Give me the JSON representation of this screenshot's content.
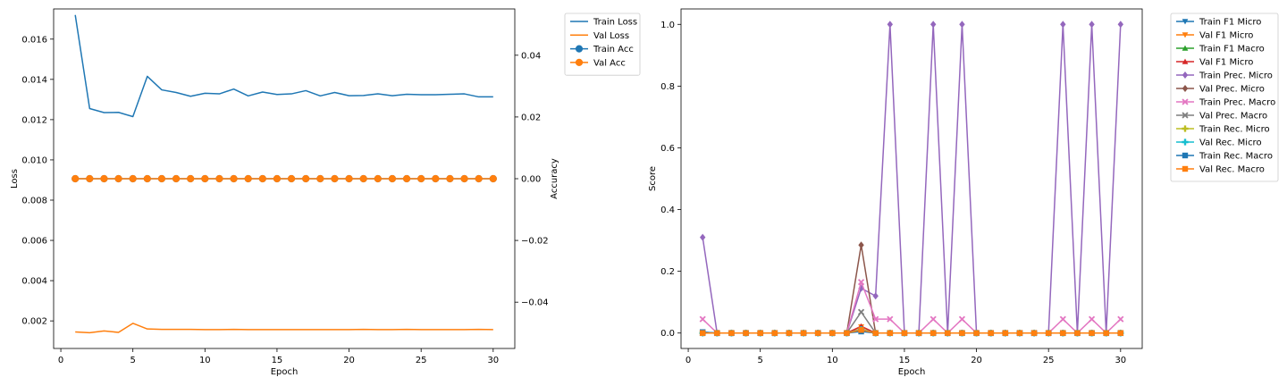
{
  "chart_data": [
    {
      "type": "line",
      "xlabel": "Epoch",
      "ylabel": "Loss",
      "y2label": "Accuracy",
      "xlim": [
        -0.5,
        31.5
      ],
      "ylim": [
        0.00063,
        0.0175
      ],
      "y2lim": [
        -0.055,
        0.055
      ],
      "xticks": [
        0,
        5,
        10,
        15,
        20,
        25,
        30
      ],
      "yticks": [
        0.002,
        0.004,
        0.006,
        0.008,
        0.01,
        0.012,
        0.014,
        0.016
      ],
      "ytick_labels": [
        "0.002",
        "0.004",
        "0.006",
        "0.008",
        "0.010",
        "0.012",
        "0.014",
        "0.016"
      ],
      "y2ticks": [
        -0.04,
        -0.02,
        0.0,
        0.02,
        0.04
      ],
      "y2tick_labels": [
        "−0.04",
        "−0.02",
        "0.00",
        "0.02",
        "0.04"
      ],
      "legend_position": "outside-top-right",
      "x": [
        1,
        2,
        3,
        4,
        5,
        6,
        7,
        8,
        9,
        10,
        11,
        12,
        13,
        14,
        15,
        16,
        17,
        18,
        19,
        20,
        21,
        22,
        23,
        24,
        25,
        26,
        27,
        28,
        29,
        30
      ],
      "series": [
        {
          "name": "Train Loss",
          "axis": "left",
          "color": "#1f77b4",
          "marker": "none",
          "values": [
            0.0172,
            0.01255,
            0.01235,
            0.01236,
            0.01215,
            0.01415,
            0.01348,
            0.01335,
            0.01316,
            0.01331,
            0.01328,
            0.01352,
            0.01318,
            0.01337,
            0.01325,
            0.01328,
            0.01344,
            0.01318,
            0.01335,
            0.01319,
            0.0132,
            0.01328,
            0.01319,
            0.01326,
            0.01324,
            0.01324,
            0.01326,
            0.01328,
            0.01313,
            0.01313
          ]
        },
        {
          "name": "Val Loss",
          "axis": "left",
          "color": "#ff7f0e",
          "marker": "none",
          "values": [
            0.00145,
            0.00141,
            0.0015,
            0.00143,
            0.00188,
            0.0016,
            0.00158,
            0.00158,
            0.00158,
            0.00157,
            0.00157,
            0.00158,
            0.00157,
            0.00157,
            0.00157,
            0.00157,
            0.00157,
            0.00157,
            0.00157,
            0.00157,
            0.00158,
            0.00157,
            0.00157,
            0.00158,
            0.00157,
            0.00157,
            0.00157,
            0.00157,
            0.00158,
            0.00157
          ]
        },
        {
          "name": "Train Acc",
          "axis": "right",
          "color": "#1f77b4",
          "marker": "o",
          "values": [
            0,
            0,
            0,
            0,
            0,
            0,
            0,
            0,
            0,
            0,
            0,
            0,
            0,
            0,
            0,
            0,
            0,
            0,
            0,
            0,
            0,
            0,
            0,
            0,
            0,
            0,
            0,
            0,
            0,
            0
          ]
        },
        {
          "name": "Val Acc",
          "axis": "right",
          "color": "#ff7f0e",
          "marker": "o",
          "values": [
            0,
            0,
            0,
            0,
            0,
            0,
            0,
            0,
            0,
            0,
            0,
            0,
            0,
            0,
            0,
            0,
            0,
            0,
            0,
            0,
            0,
            0,
            0,
            0,
            0,
            0,
            0,
            0,
            0,
            0
          ]
        }
      ]
    },
    {
      "type": "line",
      "xlabel": "Epoch",
      "ylabel": "Score",
      "xlim": [
        -0.5,
        31.5
      ],
      "ylim": [
        -0.05,
        1.05
      ],
      "xticks": [
        0,
        5,
        10,
        15,
        20,
        25,
        30
      ],
      "yticks": [
        0.0,
        0.2,
        0.4,
        0.6,
        0.8,
        1.0
      ],
      "ytick_labels": [
        "0.0",
        "0.2",
        "0.4",
        "0.6",
        "0.8",
        "1.0"
      ],
      "legend_position": "outside-top-right",
      "x": [
        1,
        2,
        3,
        4,
        5,
        6,
        7,
        8,
        9,
        10,
        11,
        12,
        13,
        14,
        15,
        16,
        17,
        18,
        19,
        20,
        21,
        22,
        23,
        24,
        25,
        26,
        27,
        28,
        29,
        30
      ],
      "series": [
        {
          "name": "Train F1 Micro",
          "color": "#1f77b4",
          "marker": "v",
          "values": [
            0.003,
            0,
            0,
            0,
            0,
            0,
            0,
            0,
            0,
            0,
            0,
            0.012,
            0,
            0,
            0,
            0,
            0,
            0,
            0,
            0,
            0,
            0,
            0,
            0,
            0,
            0,
            0,
            0,
            0,
            0
          ]
        },
        {
          "name": "Val F1 Micro",
          "color": "#ff7f0e",
          "marker": "v",
          "values": [
            0,
            0,
            0,
            0,
            0,
            0,
            0,
            0,
            0,
            0,
            0,
            0.02,
            0,
            0,
            0,
            0,
            0,
            0,
            0,
            0,
            0,
            0,
            0,
            0,
            0,
            0,
            0,
            0,
            0,
            0
          ]
        },
        {
          "name": "Train F1 Macro",
          "color": "#2ca02c",
          "marker": "^",
          "values": [
            0,
            0,
            0,
            0,
            0,
            0,
            0,
            0,
            0,
            0,
            0,
            0.01,
            0,
            0,
            0,
            0,
            0,
            0,
            0,
            0,
            0,
            0,
            0,
            0,
            0,
            0,
            0,
            0,
            0,
            0
          ]
        },
        {
          "name": "Val F1 Micro",
          "color": "#d62728",
          "marker": "^",
          "values": [
            0,
            0,
            0,
            0,
            0,
            0,
            0,
            0,
            0,
            0,
            0,
            0.022,
            0,
            0,
            0,
            0,
            0,
            0,
            0,
            0,
            0,
            0,
            0,
            0,
            0,
            0,
            0,
            0,
            0,
            0
          ]
        },
        {
          "name": "Train Prec. Micro",
          "color": "#9467bd",
          "marker": "D",
          "values": [
            0.31,
            0,
            0,
            0,
            0,
            0,
            0,
            0,
            0,
            0,
            0,
            0.145,
            0.12,
            1.0,
            0,
            0,
            1.0,
            0,
            1.0,
            0,
            0,
            0,
            0,
            0,
            0,
            1.0,
            0,
            1.0,
            0,
            1.0
          ]
        },
        {
          "name": "Val Prec. Micro",
          "color": "#8c564b",
          "marker": "D",
          "values": [
            0,
            0,
            0,
            0,
            0,
            0,
            0,
            0,
            0,
            0,
            0,
            0.285,
            0,
            0,
            0,
            0,
            0,
            0,
            0,
            0,
            0,
            0,
            0,
            0,
            0,
            0,
            0,
            0,
            0,
            0
          ]
        },
        {
          "name": "Train Prec. Macro",
          "color": "#e377c2",
          "marker": "X",
          "values": [
            0.045,
            0,
            0,
            0,
            0,
            0,
            0,
            0,
            0,
            0,
            0,
            0.165,
            0.045,
            0.045,
            0,
            0,
            0.045,
            0,
            0.045,
            0,
            0,
            0,
            0,
            0,
            0,
            0.045,
            0,
            0.045,
            0,
            0.045
          ]
        },
        {
          "name": "Val Prec. Macro",
          "color": "#7f7f7f",
          "marker": "X",
          "values": [
            0,
            0,
            0,
            0,
            0,
            0,
            0,
            0,
            0,
            0,
            0,
            0.068,
            0,
            0,
            0,
            0,
            0,
            0,
            0,
            0,
            0,
            0,
            0,
            0,
            0,
            0,
            0,
            0,
            0,
            0
          ]
        },
        {
          "name": "Train Rec. Micro",
          "color": "#bcbd22",
          "marker": "P",
          "values": [
            0,
            0,
            0,
            0,
            0,
            0,
            0,
            0,
            0,
            0,
            0,
            0.012,
            0,
            0,
            0,
            0,
            0,
            0,
            0,
            0,
            0,
            0,
            0,
            0,
            0,
            0,
            0,
            0,
            0,
            0
          ]
        },
        {
          "name": "Val Rec. Micro",
          "color": "#17becf",
          "marker": "P",
          "values": [
            0,
            0,
            0,
            0,
            0,
            0,
            0,
            0,
            0,
            0,
            0,
            0.012,
            0,
            0,
            0,
            0,
            0,
            0,
            0,
            0,
            0,
            0,
            0,
            0,
            0,
            0,
            0,
            0,
            0,
            0
          ]
        },
        {
          "name": "Train Rec. Macro",
          "color": "#1f77b4",
          "marker": "s",
          "values": [
            0.003,
            0,
            0,
            0,
            0,
            0,
            0,
            0,
            0,
            0,
            0,
            0.005,
            0,
            0,
            0,
            0,
            0,
            0,
            0,
            0,
            0,
            0,
            0,
            0,
            0,
            0,
            0,
            0,
            0,
            0
          ]
        },
        {
          "name": "Val Rec. Macro",
          "color": "#ff7f0e",
          "marker": "s",
          "values": [
            0,
            0,
            0,
            0,
            0,
            0,
            0,
            0,
            0,
            0,
            0,
            0.01,
            0,
            0,
            0,
            0,
            0,
            0,
            0,
            0,
            0,
            0,
            0,
            0,
            0,
            0,
            0,
            0,
            0,
            0
          ]
        }
      ]
    }
  ]
}
